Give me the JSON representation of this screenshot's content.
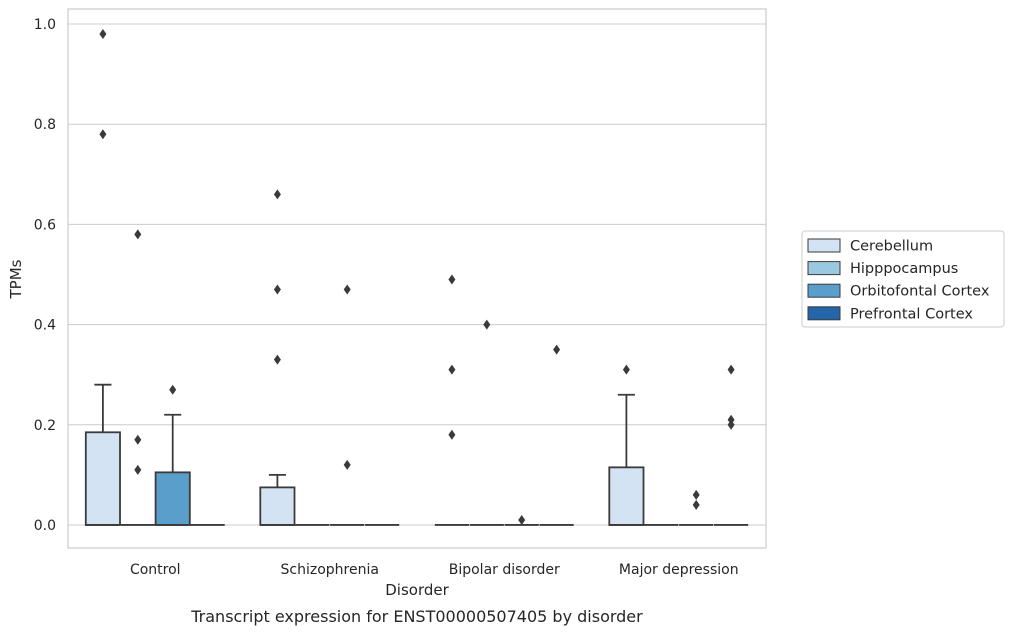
{
  "caption": "Transcript expression for ENST00000507405 by disorder",
  "colors": {
    "Cerebellum": "#d3e3f3",
    "Hipppocampus": "#9ac8e0",
    "Orbitofontal Cortex": "#5a9fcc",
    "Prefrontal Cortex": "#2566a8"
  },
  "chart_data": {
    "type": "box",
    "xlabel": "Disorder",
    "ylabel": "TPMs",
    "ylim": [
      -0.046,
      1.03
    ],
    "yticks": [
      0.0,
      0.2,
      0.4,
      0.6,
      0.8,
      1.0
    ],
    "ytick_labels": [
      "0.0",
      "0.2",
      "0.4",
      "0.6",
      "0.8",
      "1.0"
    ],
    "grid": true,
    "legend_position": "right",
    "categories": [
      "Control",
      "Schizophrenia",
      "Bipolar disorder",
      "Major depression"
    ],
    "series": [
      {
        "name": "Cerebellum",
        "boxes": [
          {
            "q1": 0,
            "median": 0,
            "q3": 0.185,
            "whislo": 0,
            "whishi": 0.28,
            "fliers": [
              0.78,
              0.98
            ]
          },
          {
            "q1": 0,
            "median": 0,
            "q3": 0.075,
            "whislo": 0,
            "whishi": 0.1,
            "fliers": [
              0.33,
              0.47,
              0.66
            ]
          },
          {
            "q1": 0,
            "median": 0,
            "q3": 0,
            "whislo": 0,
            "whishi": 0,
            "fliers": [
              0.18,
              0.31,
              0.49
            ]
          },
          {
            "q1": 0,
            "median": 0,
            "q3": 0.115,
            "whislo": 0,
            "whishi": 0.26,
            "fliers": [
              0.31
            ]
          }
        ]
      },
      {
        "name": "Hipppocampus",
        "boxes": [
          {
            "q1": 0,
            "median": 0,
            "q3": 0,
            "whislo": 0,
            "whishi": 0,
            "fliers": [
              0.11,
              0.17,
              0.58
            ]
          },
          {
            "q1": 0,
            "median": 0,
            "q3": 0,
            "whislo": 0,
            "whishi": 0,
            "fliers": []
          },
          {
            "q1": 0,
            "median": 0,
            "q3": 0,
            "whislo": 0,
            "whishi": 0,
            "fliers": [
              0.4
            ]
          },
          {
            "q1": 0,
            "median": 0,
            "q3": 0,
            "whislo": 0,
            "whishi": 0,
            "fliers": []
          }
        ]
      },
      {
        "name": "Orbitofontal Cortex",
        "boxes": [
          {
            "q1": 0,
            "median": 0,
            "q3": 0.105,
            "whislo": 0,
            "whishi": 0.22,
            "fliers": [
              0.27
            ]
          },
          {
            "q1": 0,
            "median": 0,
            "q3": 0,
            "whislo": 0,
            "whishi": 0,
            "fliers": [
              0.12,
              0.47
            ]
          },
          {
            "q1": 0,
            "median": 0,
            "q3": 0,
            "whislo": 0,
            "whishi": 0,
            "fliers": [
              0.01
            ]
          },
          {
            "q1": 0,
            "median": 0,
            "q3": 0,
            "whislo": 0,
            "whishi": 0,
            "fliers": [
              0.04,
              0.06
            ]
          }
        ]
      },
      {
        "name": "Prefrontal Cortex",
        "boxes": [
          {
            "q1": 0,
            "median": 0,
            "q3": 0,
            "whislo": 0,
            "whishi": 0,
            "fliers": []
          },
          {
            "q1": 0,
            "median": 0,
            "q3": 0,
            "whislo": 0,
            "whishi": 0,
            "fliers": []
          },
          {
            "q1": 0,
            "median": 0,
            "q3": 0,
            "whislo": 0,
            "whishi": 0,
            "fliers": [
              0.35
            ]
          },
          {
            "q1": 0,
            "median": 0,
            "q3": 0,
            "whislo": 0,
            "whishi": 0,
            "fliers": [
              0.2,
              0.21,
              0.31
            ]
          }
        ]
      }
    ]
  }
}
